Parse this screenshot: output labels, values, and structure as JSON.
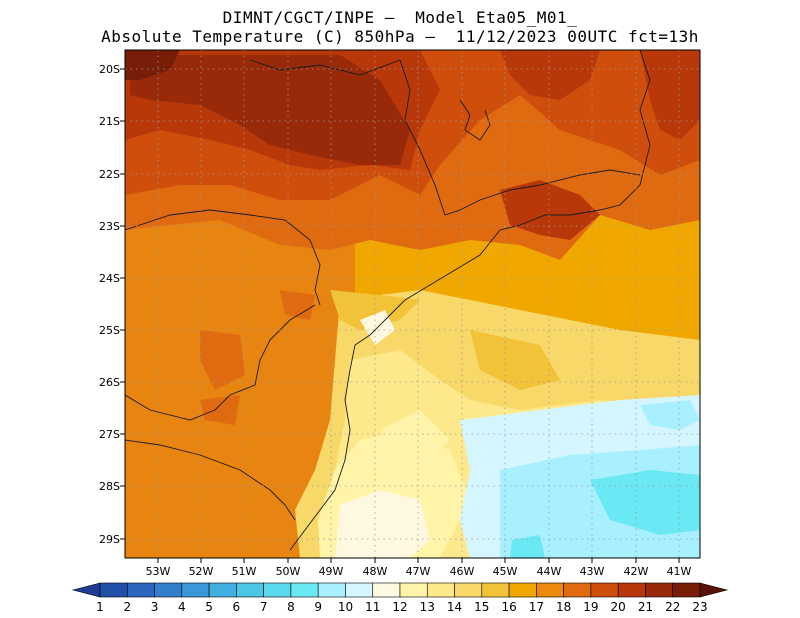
{
  "header": {
    "line1": "DIMNT/CGCT/INPE –  Model Eta05_M01_",
    "line2": "Absolute Temperature (C) 850hPa –  11/12/2023 00UTC fct=13h"
  },
  "axes": {
    "lat_labels": [
      "20S",
      "21S",
      "22S",
      "23S",
      "24S",
      "25S",
      "26S",
      "27S",
      "28S",
      "29S"
    ],
    "lon_labels": [
      "53W",
      "52W",
      "51W",
      "50W",
      "49W",
      "48W",
      "47W",
      "46W",
      "45W",
      "44W",
      "43W",
      "42W",
      "41W"
    ]
  },
  "colorbar": {
    "labels": [
      "1",
      "2",
      "3",
      "4",
      "5",
      "6",
      "7",
      "8",
      "9",
      "10",
      "11",
      "12",
      "13",
      "14",
      "15",
      "16",
      "17",
      "18",
      "19",
      "20",
      "21",
      "22",
      "23"
    ],
    "colors": [
      "#1e3c96",
      "#2150a8",
      "#2a67bc",
      "#3280cc",
      "#3a98d8",
      "#41b0e0",
      "#4bc6e6",
      "#5ad8ec",
      "#6ae8f4",
      "#a8f0ff",
      "#d6f6ff",
      "#fff8e0",
      "#fff4a8",
      "#fde98c",
      "#f8d868",
      "#f2c238",
      "#f0a800",
      "#ec8a10",
      "#e06a10",
      "#d04e0c",
      "#b8380a",
      "#982a0a",
      "#781e08",
      "#5a1208"
    ]
  },
  "map_data": {
    "variable": "Absolute Temperature",
    "units": "C",
    "level": "850hPa",
    "init": "11/12/2023 00UTC",
    "forecast": "fct=13h",
    "lat_range": [
      "29.5S",
      "19.8S"
    ],
    "lon_range": [
      "53.9W",
      "40.5W"
    ]
  }
}
